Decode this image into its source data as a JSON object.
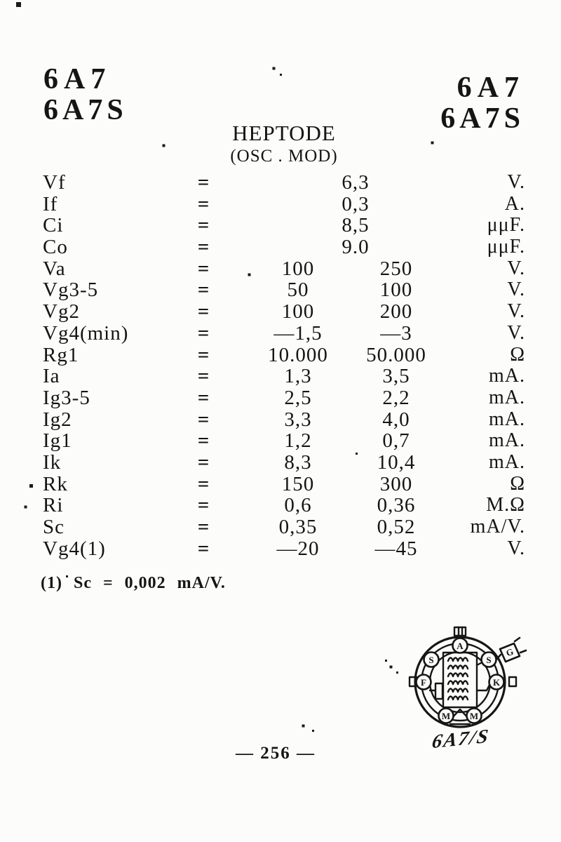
{
  "header": {
    "left": {
      "line1": "6A7",
      "line2": "6A7S"
    },
    "right": {
      "line1": "6A7",
      "line2": "6A7S"
    }
  },
  "title": {
    "main": "HEPTODE",
    "sub": "(OSC . MOD)"
  },
  "table": {
    "equals": "=",
    "rows": [
      {
        "label": "Vf",
        "vc": "6,3",
        "unit": "V."
      },
      {
        "label": "If",
        "vc": "0,3",
        "unit": "A."
      },
      {
        "label": "Ci",
        "vc": "8,5",
        "unit": "μμF."
      },
      {
        "label": "Co",
        "vc": "9.0",
        "unit": "μμF."
      },
      {
        "label": "Va",
        "v1": "100",
        "v2": "250",
        "unit": "V."
      },
      {
        "label": "Vg3-5",
        "v1": "50",
        "v2": "100",
        "unit": "V."
      },
      {
        "label": "Vg2",
        "v1": "100",
        "v2": "200",
        "unit": "V."
      },
      {
        "label": "Vg4(min)",
        "v1": "—1,5",
        "v2": "—3",
        "unit": "V."
      },
      {
        "label": "Rg1",
        "v1": "10.000",
        "v2": "50.000",
        "unit": "Ω"
      },
      {
        "label": "Ia",
        "v1": "1,3",
        "v2": "3,5",
        "unit": "mA."
      },
      {
        "label": "Ig3-5",
        "v1": "2,5",
        "v2": "2,2",
        "unit": "mA."
      },
      {
        "label": "Ig2",
        "v1": "3,3",
        "v2": "4,0",
        "unit": "mA."
      },
      {
        "label": "Ig1",
        "v1": "1,2",
        "v2": "0,7",
        "unit": "mA."
      },
      {
        "label": "Ik",
        "v1": "8,3",
        "v2": "10,4",
        "unit": "mA."
      },
      {
        "label": "Rk",
        "v1": "150",
        "v2": "300",
        "unit": "Ω"
      },
      {
        "label": "Ri",
        "v1": "0,6",
        "v2": "0,36",
        "unit": "M.Ω"
      },
      {
        "label": "Sc",
        "v1": "0,35",
        "v2": "0,52",
        "unit": "mA/V."
      },
      {
        "label": "Vg4(1)",
        "v1": "—20",
        "v2": "—45",
        "unit": "V."
      }
    ]
  },
  "footnote": "(1) Sc = 0,002 mA/V.",
  "diagram": {
    "pins": [
      "A",
      "S",
      "S",
      "F",
      "K",
      "M",
      "M"
    ],
    "cap": "G",
    "caption": "6A7/S"
  },
  "page_number": "— 256 —"
}
